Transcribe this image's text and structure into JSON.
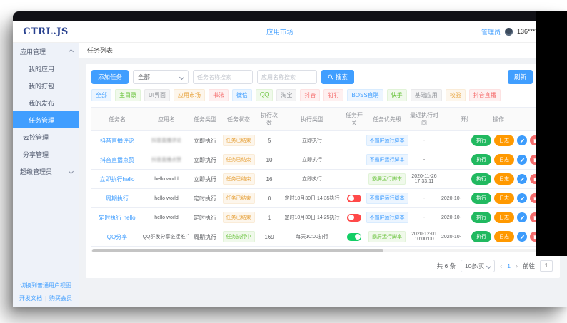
{
  "brand": {
    "logo": "CTRL.JS"
  },
  "header": {
    "center_link": "应用市场",
    "role": "管理员",
    "phone": "136******",
    "avatar_icon": "user-avatar"
  },
  "sidebar": {
    "items": [
      {
        "label": "应用管理",
        "kind": "group",
        "caret": "up",
        "active": false
      },
      {
        "label": "我的应用",
        "kind": "child",
        "active": false
      },
      {
        "label": "我的打包",
        "kind": "child",
        "active": false
      },
      {
        "label": "我的发布",
        "kind": "child",
        "active": false
      },
      {
        "label": "任务管理",
        "kind": "child",
        "active": true
      },
      {
        "label": "云控管理",
        "kind": "plain",
        "active": false
      },
      {
        "label": "分享管理",
        "kind": "plain",
        "active": false
      },
      {
        "label": "超级管理员",
        "kind": "group",
        "caret": "down",
        "active": false
      }
    ],
    "footer": {
      "switch_view": "切换到普通用户视图",
      "docs": "开发文档",
      "divider": "|",
      "buy": "购买会员"
    }
  },
  "breadcrumb": "任务列表",
  "toolbar": {
    "add_task": "添加任务",
    "filter_selected": "全部",
    "task_search_placeholder": "任务名称搜索",
    "app_search_placeholder": "应用名称搜索",
    "search": "搜索",
    "search_icon": "magnifier-icon",
    "refresh": "刷新"
  },
  "tags": [
    {
      "label": "全部",
      "type": "primary"
    },
    {
      "label": "主目录",
      "type": "success"
    },
    {
      "label": "UI界面",
      "type": "info"
    },
    {
      "label": "应用市场",
      "type": "warning"
    },
    {
      "label": "书法",
      "type": "danger"
    },
    {
      "label": "微信",
      "type": "primary"
    },
    {
      "label": "QQ",
      "type": "success"
    },
    {
      "label": "淘宝",
      "type": "info"
    },
    {
      "label": "抖音",
      "type": "danger"
    },
    {
      "label": "钉钉",
      "type": "danger"
    },
    {
      "label": "BOSS直聘",
      "type": "primary"
    },
    {
      "label": "快手",
      "type": "success"
    },
    {
      "label": "基础应用",
      "type": "info"
    },
    {
      "label": "校验",
      "type": "warning"
    },
    {
      "label": "抖音直播",
      "type": "danger"
    }
  ],
  "table": {
    "headers": [
      "任务名",
      "应用名",
      "任务类型",
      "任务状态",
      "执行次数",
      "执行类型",
      "任务开关",
      "任务优先级",
      "最近执行时间",
      "开始时间",
      "操作"
    ],
    "rows": [
      {
        "task": "抖音直播评论",
        "app": "抖音直播评论",
        "app_blurred": true,
        "type": "立即执行",
        "status": "任务已结束",
        "status_type": "warning",
        "count": "5",
        "exec": "立即执行",
        "switch": "none",
        "priority": "不霸屏运行脚本",
        "priority_type": "primary",
        "last": "-",
        "start": ""
      },
      {
        "task": "抖音直播点赞",
        "app": "抖音直播点赞",
        "app_blurred": true,
        "type": "立即执行",
        "status": "任务已结束",
        "status_type": "warning",
        "count": "10",
        "exec": "立即执行",
        "switch": "none",
        "priority": "不霸屏运行脚本",
        "priority_type": "primary",
        "last": "-",
        "start": ""
      },
      {
        "task": "立即执行hello",
        "app": "hello world",
        "app_blurred": false,
        "type": "立即执行",
        "status": "任务已结束",
        "status_type": "warning",
        "count": "16",
        "exec": "立即执行",
        "switch": "none",
        "priority": "霸屏运行脚本",
        "priority_type": "success",
        "last": "2020-11-26 17:33:11",
        "start": ""
      },
      {
        "task": "周期执行",
        "app": "hello world",
        "app_blurred": false,
        "type": "定时执行",
        "status": "任务已结束",
        "status_type": "warning",
        "count": "0",
        "exec": "定时10月30日 14:35执行",
        "switch": "off",
        "priority": "不霸屏运行脚本",
        "priority_type": "primary",
        "last": "-",
        "start": "2020-10-"
      },
      {
        "task": "定时执行 hello",
        "app": "hello world",
        "app_blurred": false,
        "type": "定时执行",
        "status": "任务已结束",
        "status_type": "warning",
        "count": "1",
        "exec": "定时10月30日 14:25执行",
        "switch": "off",
        "priority": "不霸屏运行脚本",
        "priority_type": "primary",
        "last": "-",
        "start": "2020-10-"
      },
      {
        "task": "QQ分享",
        "app": "QQ群发分享链接推广",
        "app_blurred": false,
        "type": "周期执行",
        "status": "任务执行中",
        "status_type": "success",
        "count": "169",
        "exec": "每天10:00执行",
        "switch": "on",
        "priority": "霸屏运行脚本",
        "priority_type": "success",
        "last": "2020-12-01 10:00:00",
        "start": "2020-10-"
      }
    ]
  },
  "ops": {
    "run": "执行",
    "log": "日志",
    "edit_icon": "edit-pencil-icon",
    "delete_icon": "trash-icon"
  },
  "pagination": {
    "total": "共 6 条",
    "page_size": "10条/页",
    "prev": "‹",
    "page": "1",
    "next": "›",
    "goto_label": "前往",
    "goto_value": "1"
  },
  "colors": {
    "accent": "#409eff",
    "sidebar_active": "#409eff",
    "run_green": "#21b960",
    "log_orange": "#ff9900",
    "toggle_on": "#13ce66",
    "toggle_off": "#ff4949",
    "warning": "#e6a23c",
    "success": "#67c23a",
    "danger": "#f56c6c",
    "topbar": "#101015",
    "logo_navy": "#28418f"
  }
}
